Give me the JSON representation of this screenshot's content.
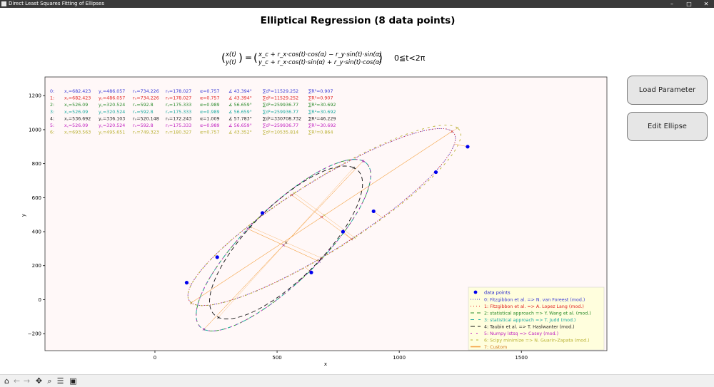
{
  "window": {
    "title": "Direct Least Squares Fitting of Ellipses",
    "minimize": "–",
    "maximize": "□",
    "close": "✕"
  },
  "buttons": {
    "load_parameter": "Load Parameter",
    "edit_ellipse": "Edit Ellipse"
  },
  "toolbar": [
    "home-icon",
    "back-icon",
    "forward-icon",
    "pan-icon",
    "zoom-icon",
    "configure-icon",
    "save-icon"
  ],
  "chart_data": {
    "type": "scatter",
    "title": "Elliptical Regression (8 data points)",
    "equation_lhs_top": "x(t)",
    "equation_lhs_bottom": "y(t)",
    "equation_rhs_top": "x_c + r_x·cos(t)·cos(α) − r_y·sin(t)·sin(α)",
    "equation_rhs_bottom": "y_c + r_x·cos(t)·sin(α) + r_y·sin(t)·cos(α)",
    "equation_range": "0≦t<2π",
    "xlabel": "x",
    "ylabel": "y",
    "xlim": [
      -450,
      1850
    ],
    "ylim": [
      -300,
      1310
    ],
    "xticks": [
      0,
      500,
      1000,
      1500
    ],
    "yticks": [
      -200,
      0,
      200,
      400,
      600,
      800,
      1000,
      1200
    ],
    "grid": false,
    "legend_position": "lower-right",
    "background": "#fff8f8",
    "points": {
      "name": "data points",
      "color": "#0000ee",
      "x": [
        130,
        255,
        440,
        640,
        770,
        895,
        1150,
        1280
      ],
      "y": [
        100,
        250,
        510,
        160,
        400,
        520,
        750,
        900
      ]
    },
    "fits": [
      {
        "index": "0:",
        "xc": "682.423",
        "yc": "486.057",
        "rx": "734.226",
        "ry": "178.027",
        "alpha": "0.757",
        "angle": "43.394°",
        "d2": "11529.252",
        "r2": "0.907",
        "color": "#3b3bd6",
        "dash": "1,2",
        "name": "Fitzgibbon et al. => N. van Foreest (mod.)",
        "cx": 682.423,
        "cy": 486.057,
        "a": 734.226,
        "b": 178.027,
        "rot": 0.757
      },
      {
        "index": "1:",
        "xc": "682.423",
        "yc": "486.057",
        "rx": "734.226",
        "ry": "178.027",
        "alpha": "0.757",
        "angle": "43.394°",
        "d2": "11529.252",
        "r2": "0.907",
        "color": "#e02020",
        "dash": "1,3",
        "name": "Fitzgibbon et al. => A. Lopez Lang (mod.)",
        "cx": 682.423,
        "cy": 486.057,
        "a": 734.226,
        "b": 178.027,
        "rot": 0.757
      },
      {
        "index": "2:",
        "xc": "526.09",
        "yc": "320.524",
        "rx": "592.8",
        "ry": "175.333",
        "alpha": "0.989",
        "angle": "56.659°",
        "d2": "259936.77",
        "r2": "30.692",
        "color": "#2a8a2a",
        "dash": "5,4",
        "name": "statistical approach => Y. Wang et al. (mod.)",
        "cx": 526.09,
        "cy": 320.524,
        "a": 592.8,
        "b": 175.333,
        "rot": 0.989
      },
      {
        "index": "3:",
        "xc": "526.09",
        "yc": "320.524",
        "rx": "592.8",
        "ry": "175.333",
        "alpha": "0.989",
        "angle": "56.659°",
        "d2": "259936.77",
        "r2": "30.692",
        "color": "#1aa8a0",
        "dash": "5,6",
        "name": "statistical approach => T. Judd (mod.)",
        "cx": 526.09,
        "cy": 320.524,
        "a": 592.8,
        "b": 175.333,
        "rot": 0.989
      },
      {
        "index": "4:",
        "xc": "536.692",
        "yc": "336.103",
        "rx": "520.148",
        "ry": "172.243",
        "alpha": "1.009",
        "angle": "57.783°",
        "d2": "330708.732",
        "r2": "46.229",
        "color": "#111111",
        "dash": "6,4",
        "name": "Taubin et al. => T. Haslwanter (mod.)",
        "cx": 536.692,
        "cy": 336.103,
        "a": 520.148,
        "b": 172.243,
        "rot": 1.009
      },
      {
        "index": "5:",
        "xc": "526.09",
        "yc": "320.524",
        "rx": "592.8",
        "ry": "175.333",
        "alpha": "0.989",
        "angle": "56.659°",
        "d2": "259936.77",
        "r2": "30.692",
        "color": "#c020c0",
        "dash": "2,6",
        "name": "Numpy lstsq => Casey (mod.)",
        "cx": 526.09,
        "cy": 320.524,
        "a": 592.8,
        "b": 175.333,
        "rot": 0.989
      },
      {
        "index": "6:",
        "xc": "693.563",
        "yc": "495.651",
        "rx": "749.323",
        "ry": "180.327",
        "alpha": "0.757",
        "angle": "43.352°",
        "d2": "10535.814",
        "r2": "0.864",
        "color": "#b8b030",
        "dash": "3,5",
        "name": "Scipy minimize => N. Guarin-Zapata (mod.)",
        "cx": 693.563,
        "cy": 495.651,
        "a": 749.323,
        "b": 180.327,
        "rot": 0.757
      }
    ],
    "custom": {
      "index": "7:",
      "name": "Custom",
      "color": "#f4a040"
    }
  }
}
